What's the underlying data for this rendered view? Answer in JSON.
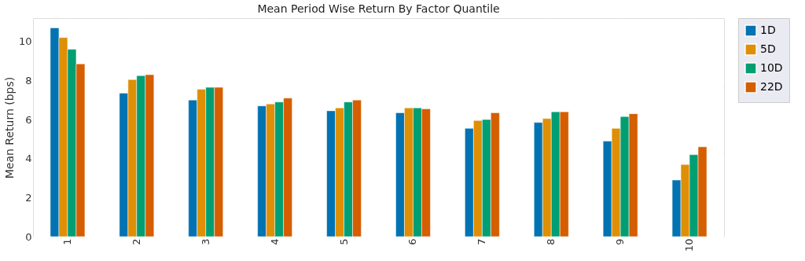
{
  "chart_data": {
    "type": "bar",
    "title": "Mean Period Wise Return By Factor Quantile",
    "ylabel": "Mean Return (bps)",
    "categories": [
      "1",
      "2",
      "3",
      "4",
      "5",
      "6",
      "7",
      "8",
      "9",
      "10"
    ],
    "series": [
      {
        "name": "1D",
        "color": "#0173b2",
        "values": [
          10.7,
          7.35,
          7.0,
          6.7,
          6.45,
          6.35,
          5.55,
          5.85,
          4.9,
          2.9
        ]
      },
      {
        "name": "5D",
        "color": "#de8f05",
        "values": [
          10.2,
          8.05,
          7.55,
          6.8,
          6.6,
          6.6,
          5.95,
          6.05,
          5.55,
          3.7
        ]
      },
      {
        "name": "10D",
        "color": "#029e73",
        "values": [
          9.6,
          8.25,
          7.65,
          6.9,
          6.9,
          6.6,
          6.0,
          6.4,
          6.15,
          4.2
        ]
      },
      {
        "name": "22D",
        "color": "#d55e00",
        "values": [
          8.85,
          8.3,
          7.65,
          7.1,
          7.0,
          6.55,
          6.35,
          6.4,
          6.3,
          4.6
        ]
      }
    ],
    "ylim": [
      0,
      11.2
    ],
    "yticks": [
      0,
      2,
      4,
      6,
      8,
      10
    ],
    "grid": true,
    "legend": "top right"
  }
}
